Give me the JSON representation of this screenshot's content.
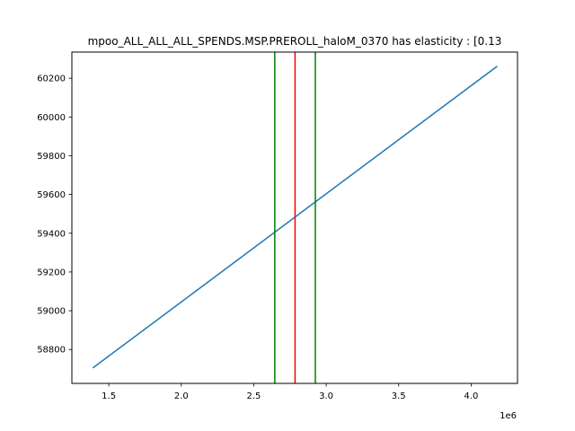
{
  "chart_data": {
    "type": "line",
    "title": "mpoo_ALL_ALL_ALL_SPENDS.MSP.PREROLL_haloM_0370 has elasticity : [0.13",
    "xlabel": "",
    "ylabel": "",
    "x_offset_label": "1e6",
    "xlim": [
      1.245,
      4.32
    ],
    "ylim": [
      58625,
      60335
    ],
    "x_ticks": [
      1.5,
      2.0,
      2.5,
      3.0,
      3.5,
      4.0
    ],
    "x_tick_labels": [
      "1.5",
      "2.0",
      "2.5",
      "3.0",
      "3.5",
      "4.0"
    ],
    "y_ticks": [
      58800,
      59000,
      59200,
      59400,
      59600,
      59800,
      60000,
      60200
    ],
    "y_tick_labels": [
      "58800",
      "59000",
      "59200",
      "59400",
      "59600",
      "59800",
      "60000",
      "60200"
    ],
    "grid": false,
    "series": [
      {
        "color": "#1f77b4",
        "x": [
          1.39,
          4.18
        ],
        "y": [
          58705,
          60262
        ]
      }
    ],
    "vlines": [
      {
        "x": 2.645,
        "color": "#008000"
      },
      {
        "x": 2.785,
        "color": "#ff0000"
      },
      {
        "x": 2.925,
        "color": "#008000"
      }
    ]
  }
}
